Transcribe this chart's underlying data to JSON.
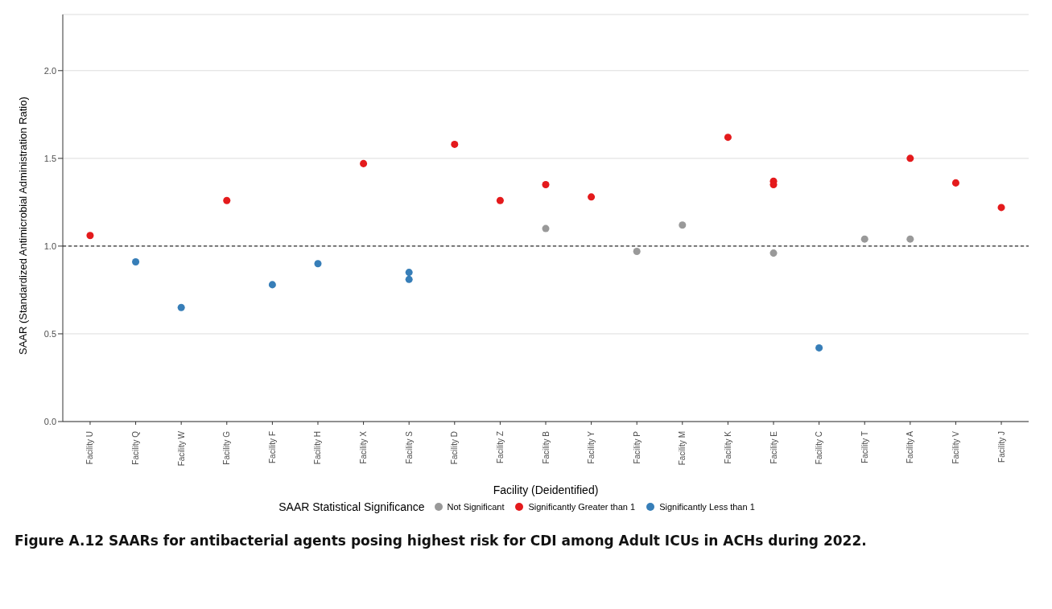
{
  "chart_data": {
    "type": "scatter",
    "xlabel": "Facility (Deidentified)",
    "ylabel": "SAAR (Standardized Antimicrobial Administration Ratio)",
    "legend_title": "SAAR Statistical Significance",
    "categories": [
      "Facility U",
      "Facility Q",
      "Facility W",
      "Facility G",
      "Facility F",
      "Facility H",
      "Facility X",
      "Facility S",
      "Facility D",
      "Facility Z",
      "Facility B",
      "Facility Y",
      "Facility P",
      "Facility M",
      "Facility K",
      "Facility E",
      "Facility C",
      "Facility T",
      "Facility A",
      "Facility V",
      "Facility J"
    ],
    "series": [
      {
        "name": "Not Significant",
        "color": "#999999",
        "x": [
          "Facility B",
          "Facility P",
          "Facility M",
          "Facility E",
          "Facility T",
          "Facility A"
        ],
        "values": [
          1.1,
          0.97,
          1.12,
          0.96,
          1.04,
          1.04
        ]
      },
      {
        "name": "Significantly Greater than 1",
        "color": "#e41a1c",
        "x": [
          "Facility U",
          "Facility G",
          "Facility X",
          "Facility D",
          "Facility Z",
          "Facility B",
          "Facility Y",
          "Facility K",
          "Facility E",
          "Facility E",
          "Facility A",
          "Facility V",
          "Facility J"
        ],
        "values": [
          1.06,
          1.26,
          1.47,
          1.58,
          1.26,
          1.35,
          1.28,
          1.62,
          1.37,
          1.35,
          1.5,
          1.36,
          1.22
        ]
      },
      {
        "name": "Significantly Less than 1",
        "color": "#377eb8",
        "x": [
          "Facility Q",
          "Facility W",
          "Facility F",
          "Facility H",
          "Facility S",
          "Facility S",
          "Facility C"
        ],
        "values": [
          0.91,
          0.65,
          0.78,
          0.9,
          0.85,
          0.81,
          0.42
        ]
      }
    ],
    "ylim": [
      0,
      2.32
    ],
    "yticks": [
      {
        "value": 0,
        "label": "0.0"
      },
      {
        "value": 0.5,
        "label": "0.5"
      },
      {
        "value": 1,
        "label": "1.0"
      },
      {
        "value": 1.5,
        "label": "1.5"
      },
      {
        "value": 2,
        "label": "2.0"
      }
    ],
    "grid": "y",
    "legend": "bottom",
    "marker": "circle",
    "ref_lines": [
      {
        "axis": "y",
        "value": 1,
        "label": null,
        "color": "#333333",
        "line_style": "dashed"
      }
    ],
    "annotations": [
      "Figure A.12 SAARs for antibacterial agents posing highest risk for CDI among Adult ICUs in ACHs during 2022."
    ]
  }
}
